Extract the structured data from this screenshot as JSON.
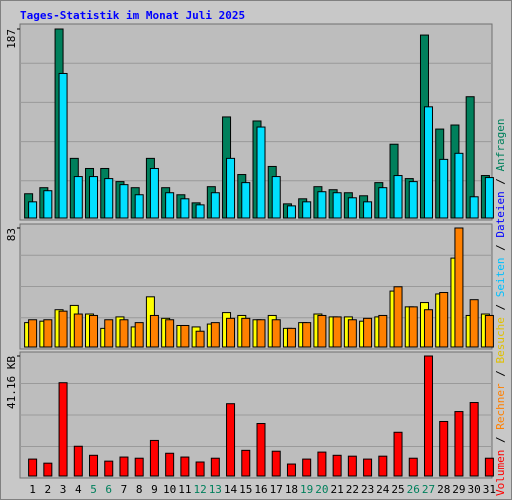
{
  "chart_data": [
    {
      "type": "bar",
      "title": "Tages-Statistik im Monat Juli 2025",
      "title_color": "#0000ff",
      "ylim": [
        0,
        187
      ],
      "yticks": [
        187
      ],
      "series": [
        {
          "color": "#00805c",
          "values": [
            24,
            30,
            187,
            59,
            49,
            49,
            36,
            30,
            59,
            30,
            23,
            15,
            31,
            100,
            43,
            96,
            51,
            14,
            19,
            31,
            28,
            25,
            22,
            35,
            73,
            39,
            181,
            88,
            92,
            120,
            42
          ]
        },
        {
          "color": "#00e0ff",
          "values": [
            16,
            27,
            143,
            41,
            41,
            39,
            33,
            23,
            49,
            25,
            19,
            13,
            25,
            59,
            35,
            90,
            41,
            12,
            16,
            26,
            25,
            20,
            16,
            30,
            42,
            36,
            110,
            58,
            64,
            21,
            40
          ]
        }
      ]
    },
    {
      "type": "bar",
      "ylim": [
        0,
        83
      ],
      "yticks": [
        83
      ],
      "series": [
        {
          "color": "#ffff00",
          "values": [
            17,
            18,
            26,
            29,
            23,
            13,
            21,
            14,
            35,
            20,
            15,
            14,
            16,
            24,
            22,
            19,
            22,
            13,
            17,
            23,
            21,
            21,
            18,
            21,
            39,
            28,
            31,
            37,
            62,
            22,
            23
          ]
        },
        {
          "color": "#ff8000",
          "values": [
            19,
            19,
            25,
            23,
            22,
            19,
            19,
            17,
            22,
            19,
            15,
            11,
            17,
            20,
            20,
            19,
            19,
            13,
            17,
            22,
            21,
            19,
            20,
            22,
            42,
            28,
            26,
            38,
            83,
            33,
            22
          ]
        }
      ]
    },
    {
      "type": "bar",
      "ylim": [
        0,
        41.16
      ],
      "yticks": [
        {
          "value": 41.16,
          "label": "41.16 KB"
        }
      ],
      "series": [
        {
          "color": "#ff0000",
          "values": [
            5.8,
            4.4,
            32.0,
            10.2,
            7.1,
            5.1,
            6.5,
            6.1,
            12.2,
            7.8,
            6.5,
            4.8,
            6.1,
            24.8,
            8.8,
            18.0,
            8.5,
            4.1,
            5.8,
            8.2,
            7.1,
            6.8,
            5.8,
            6.8,
            15.0,
            6.1,
            41.16,
            18.7,
            22.1,
            25.2,
            6.1
          ]
        }
      ],
      "categories": [
        "1",
        "2",
        "3",
        "4",
        "5",
        "6",
        "7",
        "8",
        "9",
        "10",
        "11",
        "12",
        "13",
        "14",
        "15",
        "16",
        "17",
        "18",
        "19",
        "20",
        "21",
        "22",
        "23",
        "24",
        "25",
        "26",
        "27",
        "28",
        "29",
        "30",
        "31"
      ],
      "category_colors": [
        "#000000",
        "#000000",
        "#000000",
        "#000000",
        "#00805c",
        "#00805c",
        "#000000",
        "#000000",
        "#000000",
        "#000000",
        "#000000",
        "#00805c",
        "#00805c",
        "#000000",
        "#000000",
        "#000000",
        "#000000",
        "#000000",
        "#00805c",
        "#00805c",
        "#000000",
        "#000000",
        "#000000",
        "#000000",
        "#000000",
        "#00805c",
        "#00805c",
        "#000000",
        "#000000",
        "#000000",
        "#000000"
      ]
    }
  ],
  "legend": [
    {
      "name": "Volumen",
      "color": "#ff0000"
    },
    {
      "name": "Rechner",
      "color": "#ff8000"
    },
    {
      "name": "Besuche",
      "color": "#e0c000"
    },
    {
      "name": "Seiten",
      "color": "#00c0ff"
    },
    {
      "name": "Dateien",
      "color": "#0000ff"
    },
    {
      "name": "Anfragen",
      "color": "#00805c"
    }
  ],
  "legend_separator": " / "
}
